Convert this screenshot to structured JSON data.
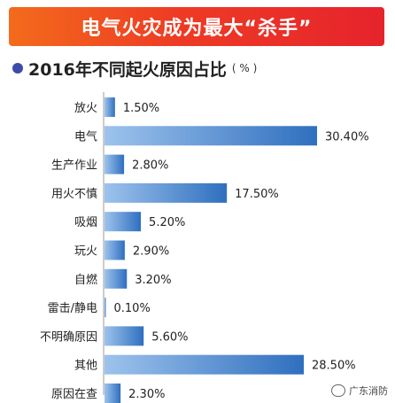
{
  "banner": {
    "title": "电气火灾成为最大“杀手”"
  },
  "subtitle": {
    "text": "2016年不同起火原因占比",
    "unit": "( % )"
  },
  "watermark": {
    "text": "广东消防",
    "icon": "wechat-icon"
  },
  "colors": {
    "banner_start": "#f36b1c",
    "banner_end": "#e6232c",
    "bar_light": "#9dc3ec",
    "bar_dark": "#2f6fbf",
    "accent_dot": "#3d4aa8"
  },
  "chart_data": {
    "type": "bar",
    "orientation": "horizontal",
    "title": "2016年不同起火原因占比",
    "unit": "%",
    "categories": [
      "放火",
      "电气",
      "生产作业",
      "用火不慎",
      "吸烟",
      "玩火",
      "自燃",
      "雷击/静电",
      "不明确原因",
      "其他",
      "原因在查"
    ],
    "values": [
      1.5,
      30.4,
      2.8,
      17.5,
      5.2,
      2.9,
      3.2,
      0.1,
      5.6,
      28.5,
      2.3
    ],
    "value_labels": [
      "1.50%",
      "30.40%",
      "2.80%",
      "17.50%",
      "5.20%",
      "2.90%",
      "3.20%",
      "0.10%",
      "5.60%",
      "28.50%",
      "2.30%"
    ],
    "xlim": [
      0,
      30.4
    ],
    "grid": false,
    "legend": "none"
  }
}
